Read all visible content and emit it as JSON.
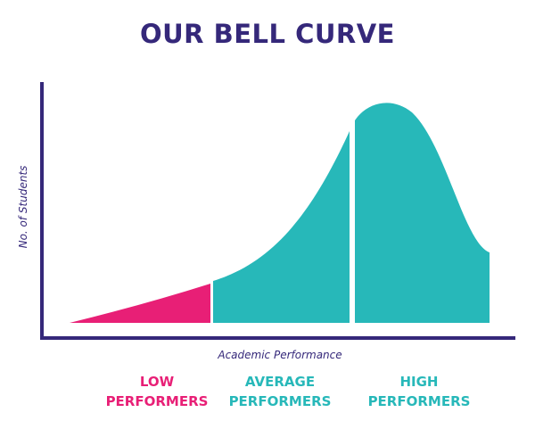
{
  "title": "OUR BELL CURVE",
  "y_axis_label": "No. of Students",
  "x_axis_label": "Academic Performance",
  "groups": [
    {
      "lines": [
        "LOW",
        "PERFORMERS"
      ]
    },
    {
      "lines": [
        "AVERAGE",
        "PERFORMERS"
      ]
    },
    {
      "lines": [
        "HIGH",
        "PERFORMERS"
      ]
    }
  ]
}
